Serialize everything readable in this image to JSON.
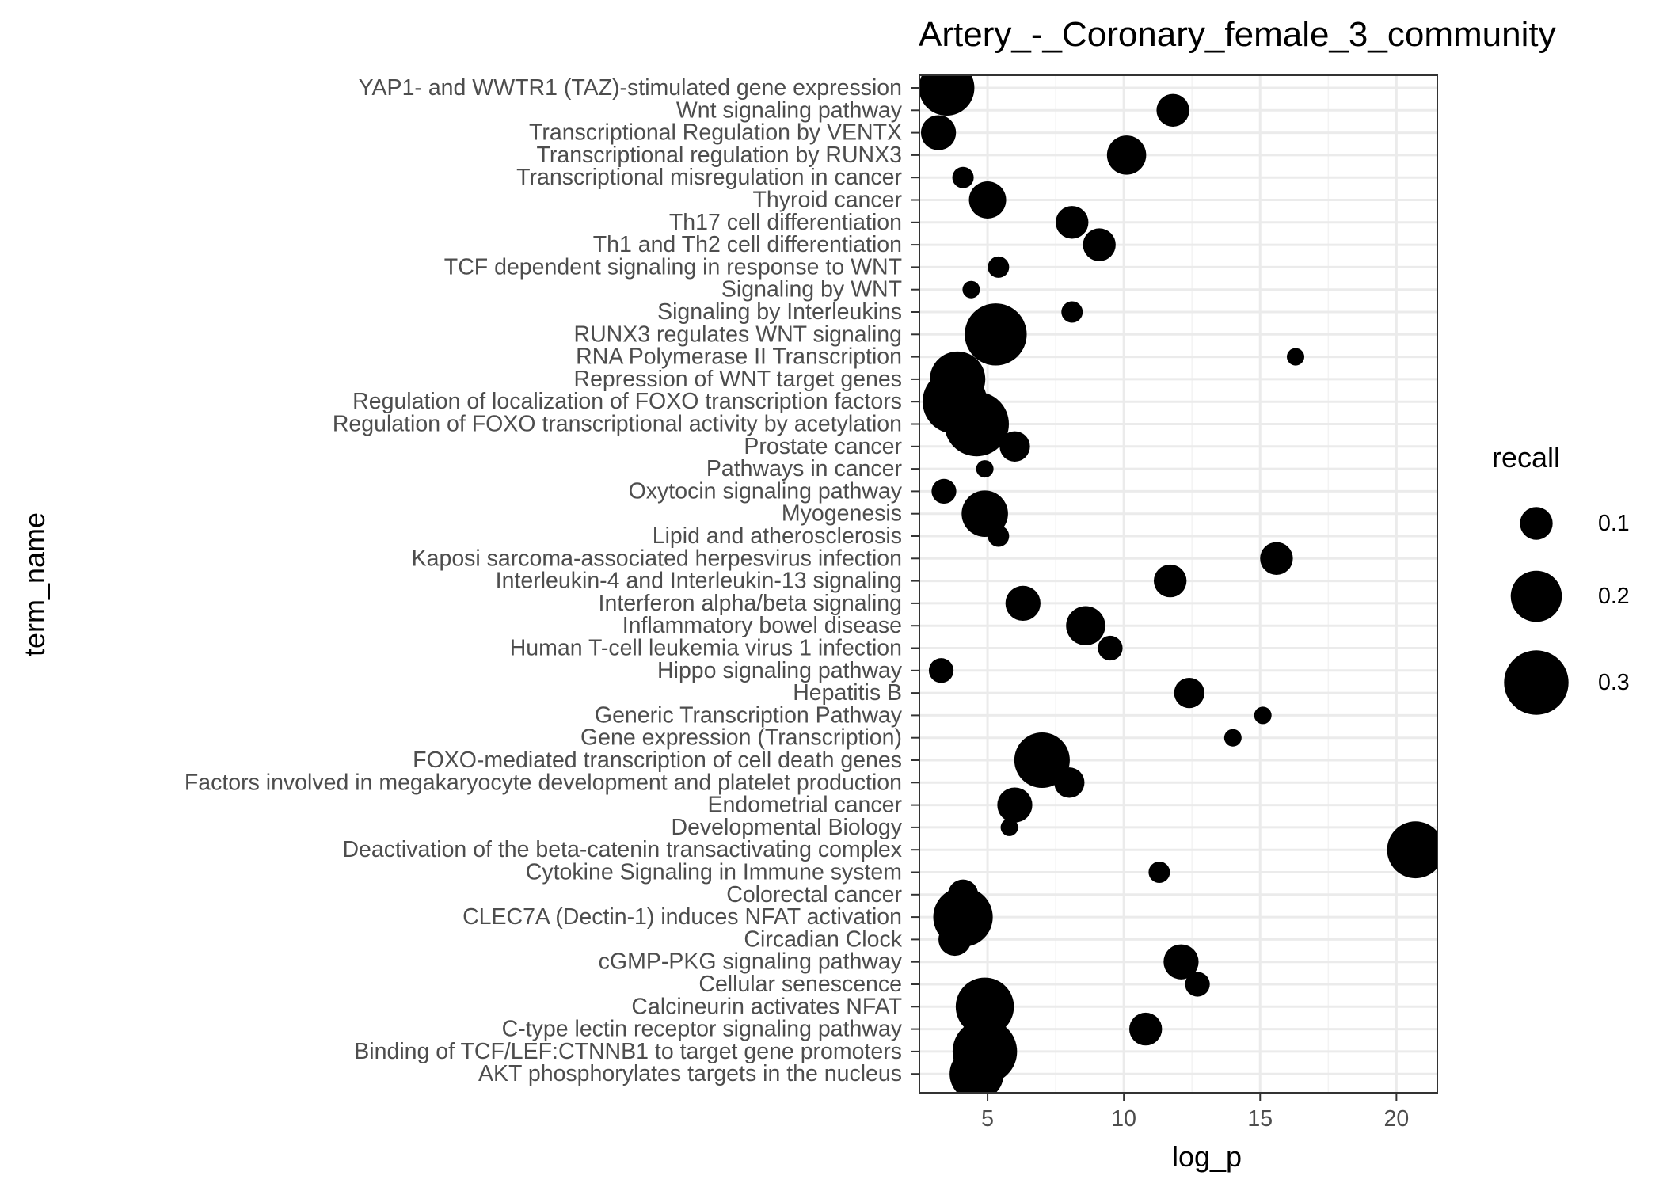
{
  "chart_data": {
    "type": "scatter",
    "title": "Artery_-_Coronary_female_3_community",
    "xlabel": "log_p",
    "ylabel": "term_name",
    "xlim": [
      2.5,
      21.5
    ],
    "x_ticks": [
      5,
      10,
      15,
      20
    ],
    "grid": true,
    "legend": {
      "title": "recall",
      "placement": "right",
      "entries": [
        {
          "label": "0.1",
          "value": 0.1
        },
        {
          "label": "0.2",
          "value": 0.2
        },
        {
          "label": "0.3",
          "value": 0.3
        }
      ]
    },
    "size_range": [
      0.05,
      0.36
    ],
    "color": "#000000",
    "categories": [
      "YAP1- and WWTR1 (TAZ)-stimulated gene expression",
      "Wnt signaling pathway",
      "Transcriptional Regulation by VENTX",
      "Transcriptional regulation by RUNX3",
      "Transcriptional misregulation in cancer",
      "Thyroid cancer",
      "Th17 cell differentiation",
      "Th1 and Th2 cell differentiation",
      "TCF dependent signaling in response to WNT",
      "Signaling by WNT",
      "Signaling by Interleukins",
      "RUNX3 regulates WNT signaling",
      "RNA Polymerase II Transcription",
      "Repression of WNT target genes",
      "Regulation of localization of FOXO transcription factors",
      "Regulation of FOXO transcriptional activity by acetylation",
      "Prostate cancer",
      "Pathways in cancer",
      "Oxytocin signaling pathway",
      "Myogenesis",
      "Lipid and atherosclerosis",
      "Kaposi sarcoma-associated herpesvirus infection",
      "Interleukin-4 and Interleukin-13 signaling",
      "Interferon alpha/beta signaling",
      "Inflammatory bowel disease",
      "Human T-cell leukemia virus 1 infection",
      "Hippo signaling pathway",
      "Hepatitis B",
      "Generic Transcription Pathway",
      "Gene expression (Transcription)",
      "FOXO-mediated transcription of cell death genes",
      "Factors involved in megakaryocyte development and platelet production",
      "Endometrial cancer",
      "Developmental Biology",
      "Deactivation of the beta-catenin transactivating complex",
      "Cytokine Signaling in Immune system",
      "Colorectal cancer",
      "CLEC7A (Dectin-1) induces NFAT activation",
      "Circadian Clock",
      "cGMP-PKG signaling pathway",
      "Cellular senescence",
      "Calcineurin activates NFAT",
      "C-type lectin receptor signaling pathway",
      "Binding of TCF/LEF:CTNNB1 to target gene promoters",
      "AKT phosphorylates targets in the nucleus"
    ],
    "points": [
      {
        "term": "YAP1- and WWTR1 (TAZ)-stimulated gene expression",
        "log_p": 3.5,
        "recall": 0.23
      },
      {
        "term": "Wnt signaling pathway",
        "log_p": 11.8,
        "recall": 0.1
      },
      {
        "term": "Transcriptional Regulation by VENTX",
        "log_p": 3.2,
        "recall": 0.11
      },
      {
        "term": "Transcriptional regulation by RUNX3",
        "log_p": 10.1,
        "recall": 0.13
      },
      {
        "term": "Transcriptional misregulation in cancer",
        "log_p": 4.1,
        "recall": 0.06
      },
      {
        "term": "Thyroid cancer",
        "log_p": 5.0,
        "recall": 0.12
      },
      {
        "term": "Th17 cell differentiation",
        "log_p": 8.1,
        "recall": 0.1
      },
      {
        "term": "Th1 and Th2 cell differentiation",
        "log_p": 9.1,
        "recall": 0.1
      },
      {
        "term": "TCF dependent signaling in response to WNT",
        "log_p": 5.4,
        "recall": 0.06
      },
      {
        "term": "Signaling by WNT",
        "log_p": 4.4,
        "recall": 0.05
      },
      {
        "term": "Signaling by Interleukins",
        "log_p": 8.1,
        "recall": 0.06
      },
      {
        "term": "RUNX3 regulates WNT signaling",
        "log_p": 5.3,
        "recall": 0.28
      },
      {
        "term": "RNA Polymerase II Transcription",
        "log_p": 16.3,
        "recall": 0.05
      },
      {
        "term": "Repression of WNT target genes",
        "log_p": 3.9,
        "recall": 0.23
      },
      {
        "term": "Regulation of localization of FOXO transcription factors",
        "log_p": 3.8,
        "recall": 0.3
      },
      {
        "term": "Regulation of FOXO transcriptional activity by acetylation",
        "log_p": 4.6,
        "recall": 0.3
      },
      {
        "term": "Prostate cancer",
        "log_p": 6.0,
        "recall": 0.09
      },
      {
        "term": "Pathways in cancer",
        "log_p": 4.9,
        "recall": 0.05
      },
      {
        "term": "Oxytocin signaling pathway",
        "log_p": 3.4,
        "recall": 0.07
      },
      {
        "term": "Myogenesis",
        "log_p": 4.9,
        "recall": 0.17
      },
      {
        "term": "Lipid and atherosclerosis",
        "log_p": 5.4,
        "recall": 0.06
      },
      {
        "term": "Kaposi sarcoma-associated herpesvirus infection",
        "log_p": 15.6,
        "recall": 0.1
      },
      {
        "term": "Interleukin-4 and Interleukin-13 signaling",
        "log_p": 11.7,
        "recall": 0.1
      },
      {
        "term": "Interferon alpha/beta signaling",
        "log_p": 6.3,
        "recall": 0.11
      },
      {
        "term": "Inflammatory bowel disease",
        "log_p": 8.6,
        "recall": 0.13
      },
      {
        "term": "Human T-cell leukemia virus 1 infection",
        "log_p": 9.5,
        "recall": 0.07
      },
      {
        "term": "Hippo signaling pathway",
        "log_p": 3.3,
        "recall": 0.07
      },
      {
        "term": "Hepatitis B",
        "log_p": 12.4,
        "recall": 0.09
      },
      {
        "term": "Generic Transcription Pathway",
        "log_p": 15.1,
        "recall": 0.05
      },
      {
        "term": "Gene expression (Transcription)",
        "log_p": 14.0,
        "recall": 0.05
      },
      {
        "term": "FOXO-mediated transcription of cell death genes",
        "log_p": 7.0,
        "recall": 0.23
      },
      {
        "term": "Factors involved in megakaryocyte development and platelet production",
        "log_p": 8.0,
        "recall": 0.09
      },
      {
        "term": "Endometrial cancer",
        "log_p": 6.0,
        "recall": 0.11
      },
      {
        "term": "Developmental Biology",
        "log_p": 5.8,
        "recall": 0.04
      },
      {
        "term": "Deactivation of the beta-catenin transactivating complex",
        "log_p": 20.7,
        "recall": 0.24
      },
      {
        "term": "Cytokine Signaling in Immune system",
        "log_p": 11.3,
        "recall": 0.06
      },
      {
        "term": "Colorectal cancer",
        "log_p": 4.1,
        "recall": 0.09
      },
      {
        "term": "CLEC7A (Dectin-1) induces NFAT activation",
        "log_p": 4.1,
        "recall": 0.26
      },
      {
        "term": "Circadian Clock",
        "log_p": 3.8,
        "recall": 0.1
      },
      {
        "term": "cGMP-PKG signaling pathway",
        "log_p": 12.1,
        "recall": 0.11
      },
      {
        "term": "Cellular senescence",
        "log_p": 12.7,
        "recall": 0.07
      },
      {
        "term": "Calcineurin activates NFAT",
        "log_p": 4.9,
        "recall": 0.25
      },
      {
        "term": "C-type lectin receptor signaling pathway",
        "log_p": 10.8,
        "recall": 0.1
      },
      {
        "term": "Binding of TCF/LEF:CTNNB1 to target gene promoters",
        "log_p": 4.9,
        "recall": 0.3
      },
      {
        "term": "AKT phosphorylates targets in the nucleus",
        "log_p": 4.6,
        "recall": 0.22
      }
    ]
  }
}
